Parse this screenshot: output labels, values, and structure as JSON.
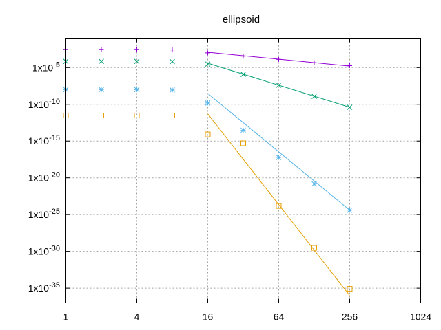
{
  "chart_data": {
    "type": "scatter",
    "title": "ellipsoid",
    "xlabel": "",
    "ylabel": "",
    "x_scale": "log2",
    "y_scale": "log10",
    "xlim": [
      1,
      1024
    ],
    "ylim": [
      1e-37,
      0.1
    ],
    "grid": true,
    "x_ticks": [
      {
        "value": 1,
        "label": "1"
      },
      {
        "value": 4,
        "label": "4"
      },
      {
        "value": 16,
        "label": "16"
      },
      {
        "value": 64,
        "label": "64"
      },
      {
        "value": 256,
        "label": "256"
      },
      {
        "value": 1024,
        "label": "1024"
      }
    ],
    "y_ticks": [
      {
        "value": 1e-05,
        "label": "1x10",
        "exp": "-5"
      },
      {
        "value": 1e-10,
        "label": "1x10",
        "exp": "-10"
      },
      {
        "value": 1e-15,
        "label": "1x10",
        "exp": "-15"
      },
      {
        "value": 1e-20,
        "label": "1x10",
        "exp": "-20"
      },
      {
        "value": 1e-25,
        "label": "1x10",
        "exp": "-25"
      },
      {
        "value": 1e-30,
        "label": "1x10",
        "exp": "-30"
      },
      {
        "value": 1e-35,
        "label": "1x10",
        "exp": "-35"
      }
    ],
    "series": [
      {
        "marker": "plus",
        "color": "#9400d3",
        "x": [
          1,
          2,
          4,
          8,
          16,
          32,
          64,
          128,
          256
        ],
        "y": [
          0.003,
          0.003,
          0.003,
          0.0025,
          0.001,
          0.00035,
          0.00013,
          4.5e-05,
          1.8e-05
        ],
        "fit": {
          "x": [
            16,
            256
          ],
          "y": [
            0.0012,
            1.6e-05
          ]
        }
      },
      {
        "marker": "cross",
        "color": "#009e73",
        "x": [
          1,
          2,
          4,
          8,
          16,
          32,
          64,
          128,
          256
        ],
        "y": [
          7e-05,
          7e-05,
          7e-05,
          6.5e-05,
          3e-05,
          1.2e-06,
          4e-08,
          1.2e-09,
          4e-11
        ],
        "fit": {
          "x": [
            16,
            256
          ],
          "y": [
            4e-05,
            4e-11
          ]
        }
      },
      {
        "marker": "asterisk",
        "color": "#56b4e9",
        "x": [
          1,
          2,
          4,
          8,
          16,
          32,
          64,
          128,
          256
        ],
        "y": [
          1e-08,
          1e-08,
          1e-08,
          9e-09,
          1.5e-10,
          3e-14,
          6e-18,
          1.5e-21,
          4e-25
        ],
        "fit": {
          "x": [
            16,
            256
          ],
          "y": [
            3e-09,
            4e-25
          ]
        }
      },
      {
        "marker": "square",
        "color": "#e69f00",
        "x": [
          1,
          2,
          4,
          8,
          16,
          32,
          64,
          128,
          256
        ],
        "y": [
          3e-12,
          3e-12,
          3e-12,
          3e-12,
          8e-15,
          5e-16,
          1.5e-24,
          3e-30,
          8e-36
        ],
        "fit": {
          "x": [
            16,
            256
          ],
          "y": [
            5e-12,
            1e-36
          ]
        }
      }
    ]
  }
}
